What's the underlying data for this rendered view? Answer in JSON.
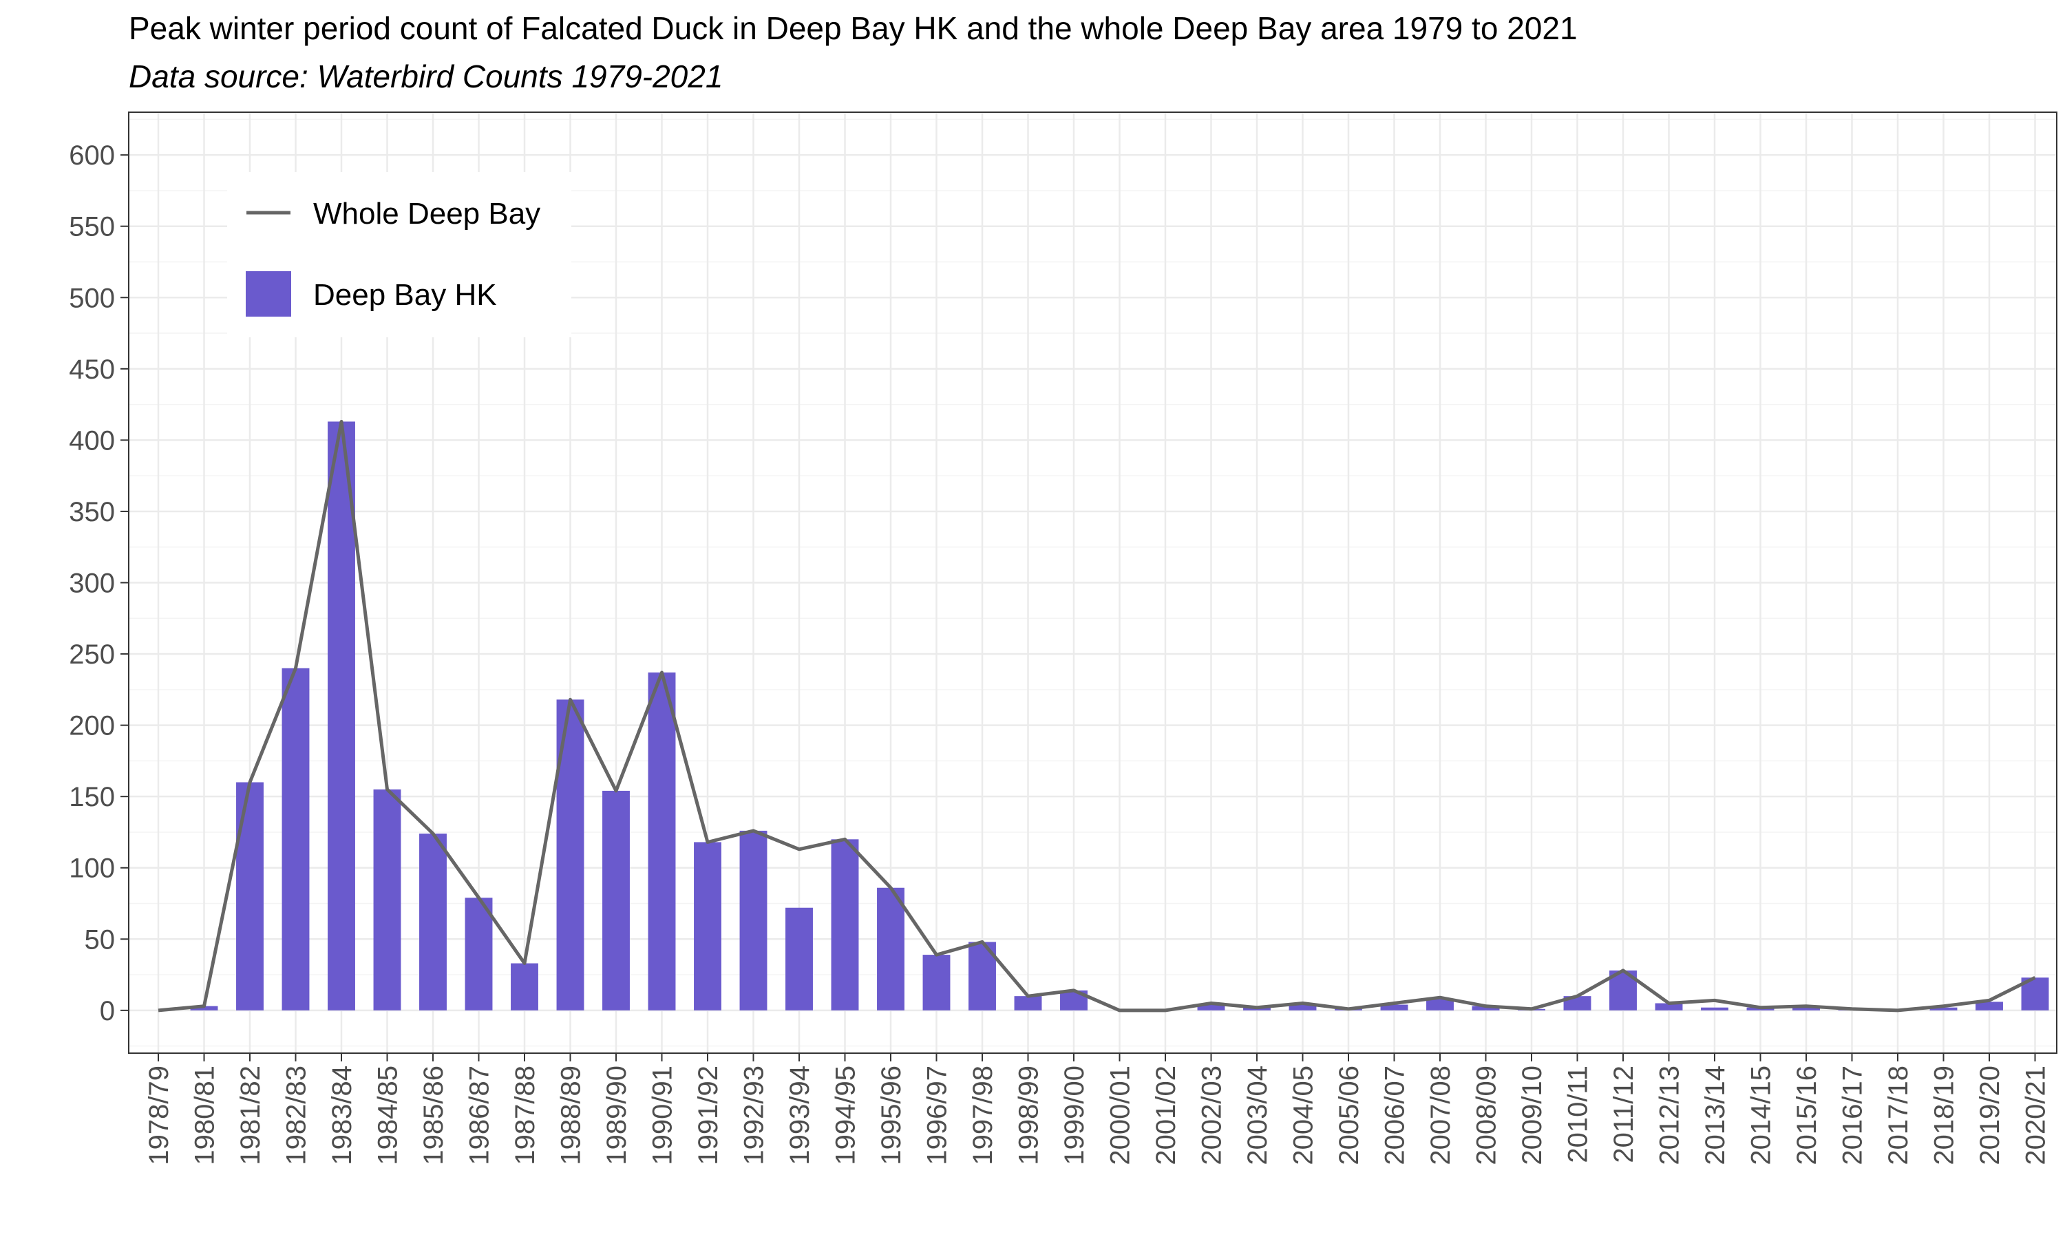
{
  "chart_data": {
    "type": "bar",
    "title": "Peak winter period count of Falcated Duck in Deep Bay HK and the whole Deep Bay area 1979 to 2021",
    "subtitle": "Data source: Waterbird Counts 1979-2021",
    "xlabel": "",
    "ylabel": "",
    "ylim": [
      -30,
      630
    ],
    "yticks": [
      0,
      50,
      100,
      150,
      200,
      250,
      300,
      350,
      400,
      450,
      500,
      550,
      600
    ],
    "grid": true,
    "legend_position": "top-left",
    "categories": [
      "1978/79",
      "1980/81",
      "1981/82",
      "1982/83",
      "1983/84",
      "1984/85",
      "1985/86",
      "1986/87",
      "1987/88",
      "1988/89",
      "1989/90",
      "1990/91",
      "1991/92",
      "1992/93",
      "1993/94",
      "1994/95",
      "1995/96",
      "1996/97",
      "1997/98",
      "1998/99",
      "1999/00",
      "2000/01",
      "2001/02",
      "2002/03",
      "2003/04",
      "2004/05",
      "2005/06",
      "2006/07",
      "2007/08",
      "2008/09",
      "2009/10",
      "2010/11",
      "2011/12",
      "2012/13",
      "2013/14",
      "2014/15",
      "2015/16",
      "2016/17",
      "2017/18",
      "2018/19",
      "2019/20",
      "2020/21"
    ],
    "series": [
      {
        "name": "Deep Bay HK",
        "kind": "bar",
        "color": "#6a5acd",
        "values": [
          0,
          3,
          160,
          240,
          413,
          155,
          124,
          79,
          33,
          218,
          154,
          237,
          118,
          126,
          72,
          120,
          86,
          39,
          48,
          10,
          14,
          0,
          0,
          4,
          2,
          4,
          1,
          4,
          8,
          3,
          1,
          10,
          28,
          5,
          2,
          2,
          3,
          1,
          0,
          2,
          6,
          23
        ]
      },
      {
        "name": "Whole Deep Bay",
        "kind": "line",
        "color": "#666666",
        "values": [
          0,
          3,
          160,
          240,
          413,
          155,
          124,
          79,
          33,
          218,
          154,
          237,
          118,
          126,
          113,
          120,
          86,
          39,
          48,
          10,
          14,
          0,
          0,
          5,
          2,
          5,
          1,
          5,
          9,
          3,
          1,
          10,
          28,
          5,
          7,
          2,
          3,
          1,
          0,
          3,
          7,
          23
        ]
      }
    ]
  }
}
